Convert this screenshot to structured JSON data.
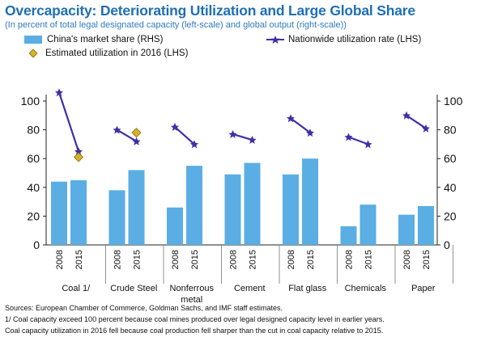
{
  "title": "Overcapacity: Deteriorating Utilization and Large Global Share",
  "subtitle": "(In percent of total legal designated capacity (left-scale) and global output (right-scale))",
  "colors": {
    "bar": "#5aaee4",
    "line": "#3f2fa8",
    "diamond": "#d8b12a",
    "title": "#1f6fb4"
  },
  "legend": {
    "bars": "China's market share (RHS)",
    "line": "Nationwide utilization rate (LHS)",
    "diamond": "Estimated utilization in 2016 (LHS)"
  },
  "chart_data": {
    "type": "bar",
    "title": "Overcapacity: Deteriorating Utilization and Large Global Share",
    "subtitle": "(In percent of total legal designated capacity (left-scale) and global output (right-scale))",
    "categories": [
      "Coal 1/",
      "Crude Steel",
      "Nonferrous metal",
      "Cement",
      "Flat glass",
      "Chemicals",
      "Paper"
    ],
    "years": [
      "2008",
      "2015"
    ],
    "ylim": [
      0,
      100
    ],
    "yticks": [
      "0",
      "20",
      "40",
      "60",
      "80",
      "100"
    ],
    "grid": false,
    "legend_position": "top",
    "series": [
      {
        "name": "China's market share (RHS)",
        "type": "bar",
        "axis": "right",
        "values_2008": [
          44,
          38,
          26,
          49,
          49,
          13,
          21
        ],
        "values_2015": [
          45,
          52,
          55,
          57,
          60,
          28,
          27
        ]
      },
      {
        "name": "Nationwide utilization rate (LHS)",
        "type": "line",
        "axis": "left",
        "values_2008": [
          106,
          80,
          82,
          77,
          88,
          75,
          90
        ],
        "values_2015": [
          65,
          72,
          70,
          73,
          78,
          70,
          81
        ]
      },
      {
        "name": "Estimated utilization in 2016 (LHS)",
        "type": "scatter",
        "axis": "left",
        "points": [
          {
            "category": "Coal 1/",
            "at": "2015",
            "value": 61
          },
          {
            "category": "Crude Steel",
            "at": "2015",
            "value": 78
          }
        ]
      }
    ]
  },
  "footnotes": [
    "Sources: European Chamber of Commerce, Goldman Sachs, and IMF staff estimates.",
    "1/ Coal capacity exceed 100 percent because coal mines produced over legal designed capacity level in earlier years.",
    "Coal capacity utilization in 2016 fell because coal production fell sharper than the cut in coal capacity relative to 2015."
  ]
}
